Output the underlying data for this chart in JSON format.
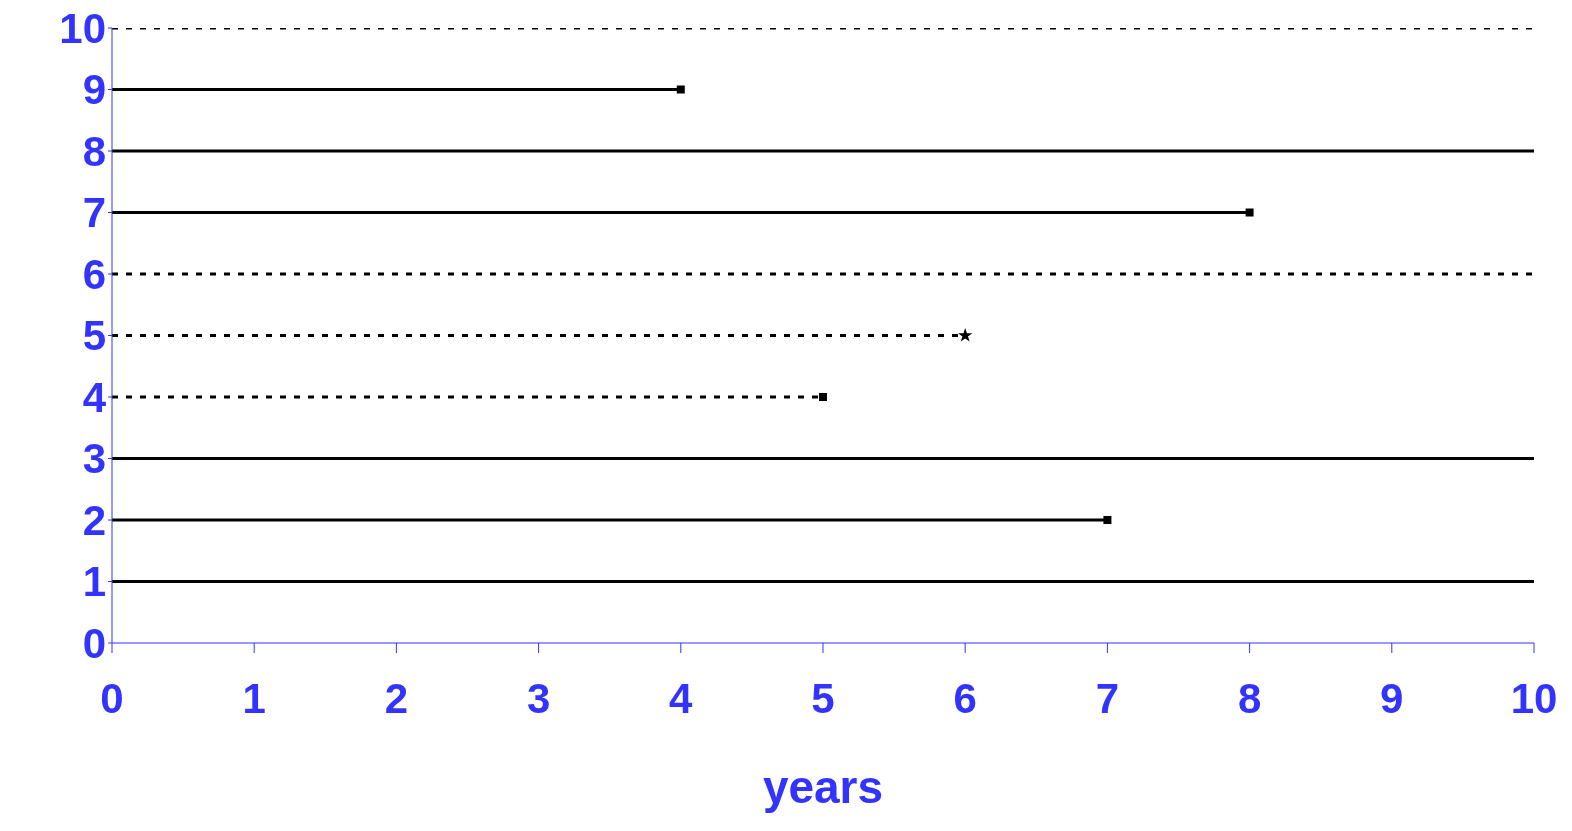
{
  "chart_data": {
    "type": "line",
    "xlabel": "years",
    "xlim": [
      0,
      10
    ],
    "ylim": [
      0,
      10
    ],
    "xticks": [
      0,
      1,
      2,
      3,
      4,
      5,
      6,
      7,
      8,
      9,
      10
    ],
    "yticks": [
      0,
      1,
      2,
      3,
      4,
      5,
      6,
      7,
      8,
      9,
      10
    ],
    "grid": false,
    "legend": false,
    "marker": "none",
    "series": [
      {
        "color": "#000000",
        "x": [
          0,
          10
        ],
        "values": [
          10,
          10
        ],
        "line_style": "dotted"
      },
      {
        "color": "#000000",
        "x": [
          0,
          4
        ],
        "values": [
          9,
          9
        ],
        "line_style": "solid"
      },
      {
        "color": "#000000",
        "x": [
          0,
          10
        ],
        "values": [
          8,
          8
        ],
        "line_style": "solid"
      },
      {
        "color": "#000000",
        "x": [
          0,
          8
        ],
        "values": [
          7,
          7
        ],
        "line_style": "solid"
      },
      {
        "color": "#000000",
        "x": [
          0,
          10
        ],
        "values": [
          6,
          6
        ],
        "line_style": "dotted"
      },
      {
        "color": "#000000",
        "x": [
          0,
          6
        ],
        "values": [
          5,
          5
        ],
        "line_style": "dotted"
      },
      {
        "color": "#000000",
        "x": [
          0,
          5
        ],
        "values": [
          4,
          4
        ],
        "line_style": "dotted"
      },
      {
        "color": "#000000",
        "x": [
          0,
          10
        ],
        "values": [
          3,
          3
        ],
        "line_style": "solid"
      },
      {
        "color": "#000000",
        "x": [
          0,
          7
        ],
        "values": [
          2,
          2
        ],
        "line_style": "solid"
      },
      {
        "color": "#000000",
        "x": [
          0,
          10
        ],
        "values": [
          1,
          1
        ],
        "line_style": "solid"
      },
      {
        "type": "scatter",
        "color": "#000000",
        "x": [
          4,
          8,
          5,
          7
        ],
        "values": [
          9,
          7,
          4,
          2
        ],
        "marker": "square"
      },
      {
        "type": "scatter",
        "color": "#000000",
        "x": [
          6
        ],
        "values": [
          5
        ],
        "marker": "star"
      }
    ]
  }
}
